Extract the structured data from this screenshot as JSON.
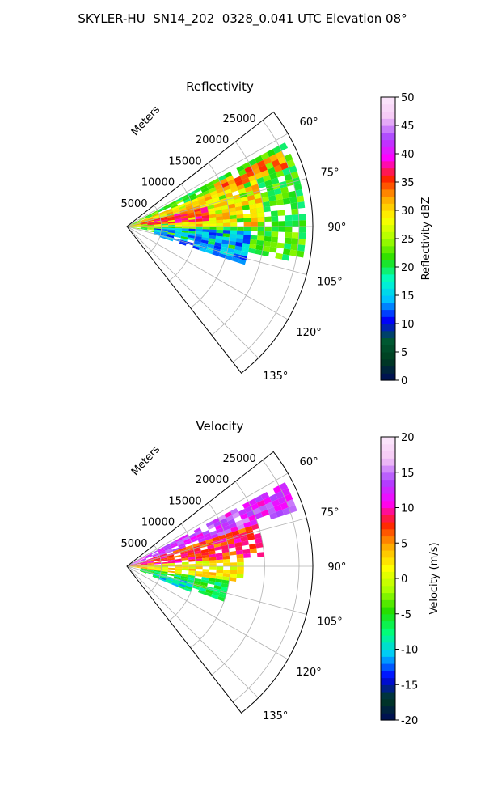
{
  "figure": {
    "title": "SKYLER-HU  SN14_202  0328_0.041 UTC Elevation 08°"
  },
  "chart_data": [
    {
      "type": "heatmap",
      "panel": "reflectivity",
      "title": "Reflectivity",
      "projection": "polar-sector",
      "theta_range_deg": [
        52,
        142
      ],
      "r_range_m": [
        0,
        27000
      ],
      "r_label": "Meters",
      "r_ticks": [
        5000,
        10000,
        15000,
        20000,
        25000
      ],
      "theta_ticks": [
        "60°",
        "75°",
        "90°",
        "105°",
        "120°",
        "135°"
      ],
      "grid": true,
      "colorbar": {
        "label": "Reflectivity dBZ",
        "range": [
          0,
          50
        ],
        "ticks": [
          0,
          5,
          10,
          15,
          20,
          25,
          30,
          35,
          40,
          45,
          50
        ],
        "colors": [
          "#000a5a",
          "#003c1e",
          "#005a32",
          "#0000ff",
          "#00c0ff",
          "#00ffc8",
          "#22dd00",
          "#aaff00",
          "#ffff00",
          "#ffaa00",
          "#ff2200",
          "#ff00ff",
          "#aa44ff",
          "#f5c8f5",
          "#fbe8fb"
        ]
      },
      "echo_regions": [
        {
          "theta": [
            62,
            102
          ],
          "r": [
            0,
            25500
          ],
          "dbz": 22
        },
        {
          "theta": [
            68,
            90
          ],
          "r": [
            0,
            20000
          ],
          "dbz": 30
        },
        {
          "theta": [
            76,
            86
          ],
          "r": [
            2000,
            12000
          ],
          "dbz": 36
        },
        {
          "theta": [
            64,
            70
          ],
          "r": [
            14000,
            24500
          ],
          "dbz": 33
        },
        {
          "theta": [
            92,
            108
          ],
          "r": [
            4000,
            18000
          ],
          "dbz": 14
        }
      ]
    },
    {
      "type": "heatmap",
      "panel": "velocity",
      "title": "Velocity",
      "projection": "polar-sector",
      "theta_range_deg": [
        52,
        142
      ],
      "r_range_m": [
        0,
        27000
      ],
      "r_label": "Meters",
      "r_ticks": [
        5000,
        10000,
        15000,
        20000,
        25000
      ],
      "theta_ticks": [
        "60°",
        "75°",
        "90°",
        "105°",
        "120°",
        "135°"
      ],
      "grid": true,
      "colorbar": {
        "label": "Velocity (m/s)",
        "range": [
          -20,
          20
        ],
        "ticks": [
          -20,
          -15,
          -10,
          -5,
          0,
          5,
          10,
          15,
          20
        ],
        "colors": [
          "#000a5a",
          "#003c1e",
          "#0000ff",
          "#00c8ff",
          "#00ff80",
          "#22dd00",
          "#aaff00",
          "#ffff00",
          "#ffaa00",
          "#ff2200",
          "#ff00ff",
          "#aa44ff",
          "#f5c8f5",
          "#fbe8fb"
        ]
      },
      "echo_regions": [
        {
          "theta": [
            62,
            72
          ],
          "r": [
            0,
            25500
          ],
          "v": 13
        },
        {
          "theta": [
            72,
            86
          ],
          "r": [
            0,
            20000
          ],
          "v": 8
        },
        {
          "theta": [
            86,
            98
          ],
          "r": [
            0,
            17000
          ],
          "v": 2
        },
        {
          "theta": [
            98,
            110
          ],
          "r": [
            2000,
            15000
          ],
          "v": -6
        },
        {
          "theta": [
            104,
            112
          ],
          "r": [
            4000,
            10000
          ],
          "v": -9
        }
      ]
    }
  ]
}
